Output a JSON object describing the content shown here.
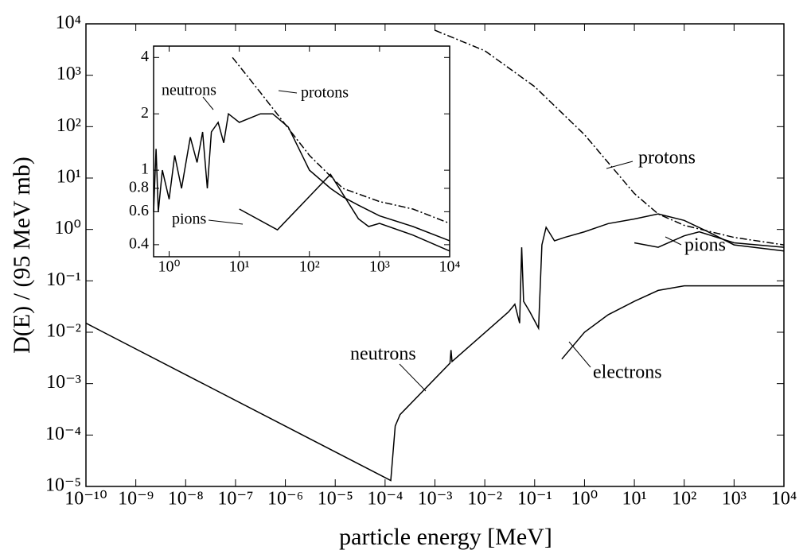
{
  "chart_data": [
    {
      "type": "line",
      "x_label": "particle energy [MeV]",
      "y_label": "D(E) / (95 MeV mb)",
      "log_x": true,
      "log_y": true,
      "xlim": [
        1e-10,
        10000
      ],
      "ylim": [
        1e-05,
        10000
      ],
      "xticks": [
        {
          "value": 1e-10,
          "label": "10⁻¹⁰"
        },
        {
          "value": 1e-09,
          "label": "10⁻⁹"
        },
        {
          "value": 1e-08,
          "label": "10⁻⁸"
        },
        {
          "value": 1e-07,
          "label": "10⁻⁷"
        },
        {
          "value": 1e-06,
          "label": "10⁻⁶"
        },
        {
          "value": 1e-05,
          "label": "10⁻⁵"
        },
        {
          "value": 0.0001,
          "label": "10⁻⁴"
        },
        {
          "value": 0.001,
          "label": "10⁻³"
        },
        {
          "value": 0.01,
          "label": "10⁻²"
        },
        {
          "value": 0.1,
          "label": "10⁻¹"
        },
        {
          "value": 1,
          "label": "10⁰"
        },
        {
          "value": 10,
          "label": "10¹"
        },
        {
          "value": 100,
          "label": "10²"
        },
        {
          "value": 1000,
          "label": "10³"
        },
        {
          "value": 10000,
          "label": "10⁴"
        }
      ],
      "yticks": [
        {
          "value": 1e-05,
          "label": "10⁻⁵"
        },
        {
          "value": 0.0001,
          "label": "10⁻⁴"
        },
        {
          "value": 0.001,
          "label": "10⁻³"
        },
        {
          "value": 0.01,
          "label": "10⁻²"
        },
        {
          "value": 0.1,
          "label": "10⁻¹"
        },
        {
          "value": 1,
          "label": "10⁰"
        },
        {
          "value": 10,
          "label": "10¹"
        },
        {
          "value": 100,
          "label": "10²"
        },
        {
          "value": 1000,
          "label": "10³"
        },
        {
          "value": 10000,
          "label": "10⁴"
        }
      ],
      "series": [
        {
          "name": "protons",
          "color": "#000000",
          "dash": "dashdot",
          "x": [
            0.001,
            0.01,
            0.1,
            1,
            10,
            30,
            100,
            1000,
            10000
          ],
          "values": [
            7500,
            3000,
            600,
            70,
            5,
            2,
            1.2,
            0.7,
            0.5
          ]
        },
        {
          "name": "neutrons",
          "color": "#000000",
          "dash": "solid",
          "x": [
            1e-10,
            0.00013,
            0.00016,
            0.0002,
            0.002,
            0.0021,
            0.0022,
            0.03,
            0.04,
            0.05,
            0.055,
            0.06,
            0.08,
            0.12,
            0.14,
            0.17,
            0.25,
            0.4,
            1,
            3,
            10,
            30,
            100,
            300,
            1000,
            10000
          ],
          "values": [
            0.015,
            1.3e-05,
            0.00015,
            0.00025,
            0.0025,
            0.0045,
            0.0027,
            0.025,
            0.035,
            0.015,
            0.45,
            0.04,
            0.025,
            0.012,
            0.5,
            1.1,
            0.6,
            0.7,
            0.9,
            1.3,
            1.6,
            2,
            1.5,
            0.9,
            0.5,
            0.38
          ]
        },
        {
          "name": "pions",
          "color": "#000000",
          "dash": "solid",
          "x": [
            10,
            30,
            100,
            200,
            1000,
            10000
          ],
          "values": [
            0.55,
            0.45,
            0.75,
            0.9,
            0.55,
            0.45
          ]
        },
        {
          "name": "electrons",
          "color": "#000000",
          "dash": "solid",
          "x": [
            0.35,
            1,
            3,
            10,
            30,
            100,
            10000
          ],
          "values": [
            0.003,
            0.01,
            0.022,
            0.04,
            0.065,
            0.08,
            0.08
          ]
        }
      ]
    },
    {
      "type": "line",
      "log_x": true,
      "log_y": true,
      "xlim": [
        0.6,
        10000
      ],
      "ylim": [
        0.345,
        4.6
      ],
      "xticks": [
        {
          "value": 1,
          "label": "10⁰"
        },
        {
          "value": 10,
          "label": "10¹"
        },
        {
          "value": 100,
          "label": "10²"
        },
        {
          "value": 1000,
          "label": "10³"
        },
        {
          "value": 10000,
          "label": "10⁴"
        }
      ],
      "yticks": [
        0.4,
        0.6,
        0.8,
        1,
        2,
        4
      ],
      "series": [
        {
          "name": "neutrons",
          "color": "#000000",
          "dash": "solid",
          "x": [
            0.6,
            0.65,
            0.7,
            0.8,
            1,
            1.2,
            1.5,
            2,
            2.5,
            3,
            3.5,
            4,
            5,
            6,
            7,
            10,
            20,
            30,
            50,
            100,
            200,
            300,
            500,
            1000,
            3000,
            10000
          ],
          "values": [
            0.6,
            1.3,
            0.6,
            1,
            0.7,
            1.2,
            0.8,
            1.5,
            1.1,
            1.6,
            0.8,
            1.6,
            1.8,
            1.4,
            2,
            1.8,
            2,
            2,
            1.7,
            1,
            0.8,
            0.72,
            0.65,
            0.57,
            0.5,
            0.42
          ]
        },
        {
          "name": "protons",
          "color": "#000000",
          "dash": "dashdot",
          "x": [
            8,
            20,
            100,
            300,
            1000,
            3000,
            10000
          ],
          "values": [
            4,
            2.6,
            1.2,
            0.8,
            0.68,
            0.62,
            0.52
          ]
        },
        {
          "name": "pions",
          "color": "#000000",
          "dash": "solid",
          "x": [
            10,
            35,
            200,
            500,
            700,
            1000,
            3000,
            10000
          ],
          "values": [
            0.62,
            0.48,
            0.95,
            0.55,
            0.5,
            0.52,
            0.45,
            0.37
          ]
        }
      ]
    }
  ]
}
